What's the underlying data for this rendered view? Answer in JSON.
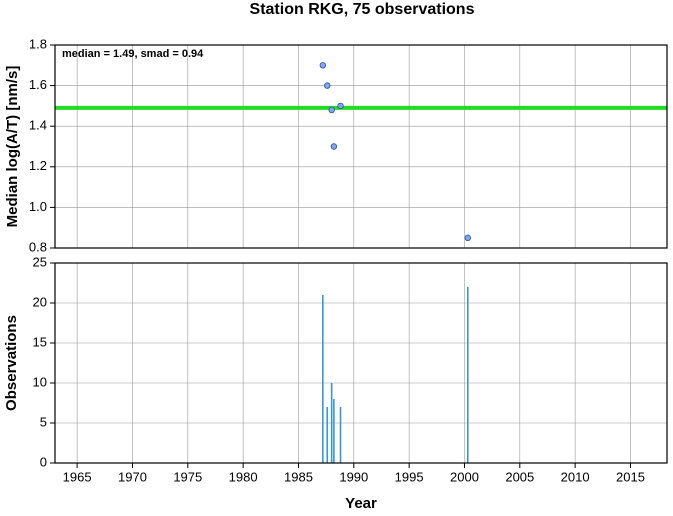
{
  "title": "Station RKG, 75 observations",
  "chart_data": [
    {
      "type": "scatter",
      "ylabel": "Median log(A/T) [nm/s]",
      "annotation": "median = 1.49, smad = 0.94",
      "x": [
        1987.2,
        1987.6,
        1988.0,
        1988.8,
        1988.2,
        2000.3
      ],
      "values": [
        1.7,
        1.6,
        1.48,
        1.5,
        1.3,
        0.85
      ],
      "color": "#7fa7ef",
      "hline": 1.49,
      "hline_color": "#22dd22",
      "xlim": [
        1963,
        2018.3
      ],
      "ylim": [
        0.8,
        1.8
      ],
      "yticks": [
        0.8,
        {
          "value": 1,
          "label": "1.0"
        },
        1.2,
        1.4,
        1.6,
        1.8
      ],
      "grid": true
    },
    {
      "type": "bar",
      "ylabel": "Observations",
      "xlabel": "Year",
      "x": [
        1987.2,
        1987.6,
        1988.0,
        1988.2,
        1988.8,
        2000.3
      ],
      "values": [
        21,
        7,
        10,
        8,
        7,
        22
      ],
      "color": "#3a96d8",
      "xlim": [
        1963,
        2018.3
      ],
      "ylim": [
        0,
        25
      ],
      "xticks": [
        1965,
        1970,
        1975,
        1980,
        1985,
        1990,
        1995,
        2000,
        2005,
        2010,
        2015
      ],
      "yticks": [
        0,
        5,
        10,
        15,
        20,
        25
      ],
      "grid": true
    }
  ]
}
